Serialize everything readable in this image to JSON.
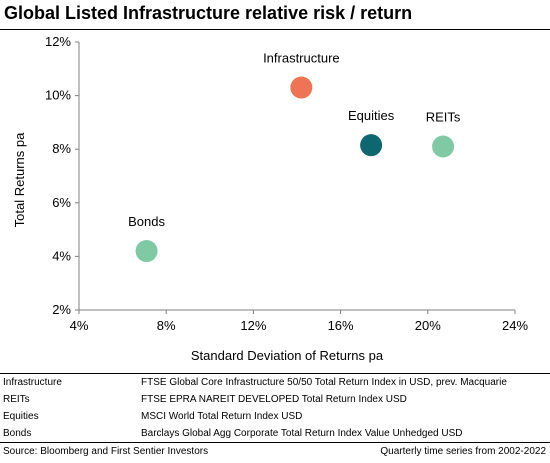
{
  "title": "Global Listed Infrastructure relative risk / return",
  "chart_data": {
    "type": "scatter",
    "xlabel": "Standard Deviation of Returns pa",
    "ylabel": "Total Returns pa",
    "xlim": [
      4,
      24
    ],
    "ylim": [
      2,
      12
    ],
    "x_ticks": [
      "4%",
      "8%",
      "12%",
      "16%",
      "20%",
      "24%"
    ],
    "y_ticks": [
      "2%",
      "4%",
      "6%",
      "8%",
      "10%",
      "12%"
    ],
    "grid": false,
    "points": [
      {
        "name": "Infrastructure",
        "x": 14.2,
        "y": 10.3,
        "color": "#ee7455"
      },
      {
        "name": "Equities",
        "x": 17.4,
        "y": 8.15,
        "color": "#0e6671"
      },
      {
        "name": "REITs",
        "x": 20.7,
        "y": 8.1,
        "color": "#7fcaa5"
      },
      {
        "name": "Bonds",
        "x": 7.1,
        "y": 4.2,
        "color": "#7fcaa5"
      }
    ]
  },
  "definitions": [
    {
      "key": "Infrastructure",
      "value": "FTSE Global Core Infrastructure 50/50 Total Return Index in USD, prev. Macquarie"
    },
    {
      "key": "REITs",
      "value": "FTSE EPRA NAREIT DEVELOPED Total Return Index USD"
    },
    {
      "key": "Equities",
      "value": "MSCI World Total Return Index USD"
    },
    {
      "key": "Bonds",
      "value": "Barclays Global Agg Corporate Total Return Index Value Unhedged USD"
    }
  ],
  "footer": {
    "source": "Source: Bloomberg and First Sentier Investors",
    "period": "Quarterly time series from 2002-2022"
  }
}
